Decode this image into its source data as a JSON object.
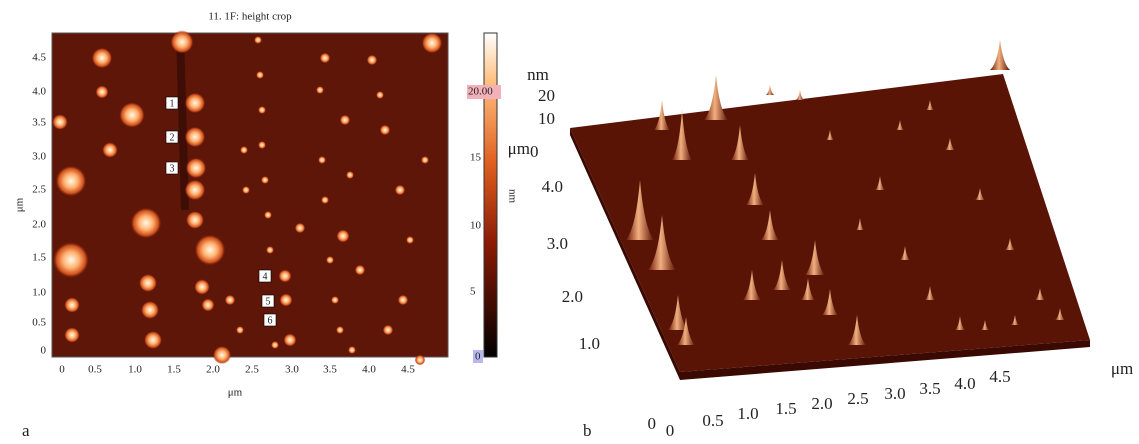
{
  "panel_a": {
    "label": "a",
    "title": "11. 1F: height crop",
    "x_axis_label": "μm",
    "y_axis_label": "μm",
    "x_ticks": [
      "0",
      "0.5",
      "1.0",
      "1.5",
      "2.0",
      "2.5",
      "3.0",
      "3.5",
      "4.0",
      "4.5"
    ],
    "y_ticks": [
      "0",
      "0.5",
      "1.0",
      "1.5",
      "2.0",
      "2.5",
      "3.0",
      "3.5",
      "4.0",
      "4.5"
    ],
    "colorbar": {
      "label": "nm",
      "ticks": [
        "0",
        "5",
        "10",
        "15"
      ],
      "marker": "20.00",
      "bottom_marker": "0"
    },
    "markers": [
      "1",
      "2",
      "3",
      "4",
      "5",
      "6"
    ]
  },
  "panel_b": {
    "label": "b",
    "z_unit": "nm",
    "z_ticks": [
      "20",
      "10"
    ],
    "y_unit": "μm",
    "y_origin": "0",
    "y_ticks": [
      "4.0",
      "3.0",
      "2.0",
      "1.0",
      "0"
    ],
    "x_ticks": [
      "0",
      "0.5",
      "1.0",
      "1.5",
      "2.0",
      "2.5",
      "3.0",
      "3.5",
      "4.0",
      "4.5"
    ],
    "x_unit": "μm"
  }
}
